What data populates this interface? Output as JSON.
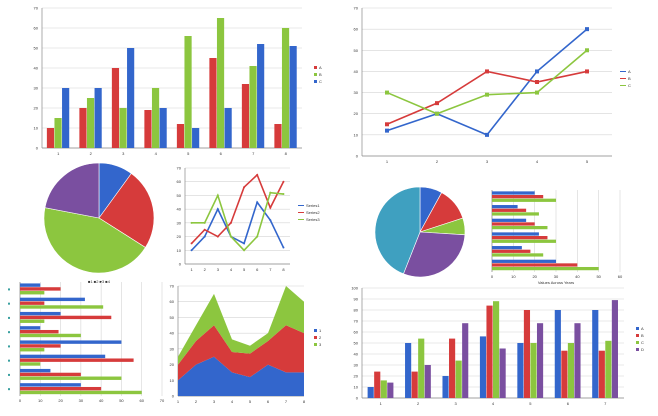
{
  "colors": {
    "blue": "#3366cc",
    "red": "#d63b3b",
    "green": "#8cc63f",
    "purple": "#7a4fa0",
    "teal": "#3fa0c0",
    "orange": "#e08030"
  },
  "chart_data": [
    {
      "id": "c1",
      "type": "bar",
      "title": "",
      "categories": [
        "1",
        "2",
        "3",
        "4",
        "5",
        "6",
        "7",
        "8"
      ],
      "ylim": [
        0,
        70
      ],
      "yticks": [
        0,
        10,
        20,
        30,
        40,
        50,
        60,
        70
      ],
      "series": [
        {
          "name": "A",
          "color": "red",
          "values": [
            10,
            20,
            40,
            19,
            12,
            45,
            32,
            12
          ]
        },
        {
          "name": "B",
          "color": "green",
          "values": [
            15,
            25,
            20,
            30,
            56,
            65,
            41,
            60
          ]
        },
        {
          "name": "C",
          "color": "blue",
          "values": [
            30,
            30,
            50,
            20,
            10,
            20,
            52,
            51
          ]
        }
      ],
      "legend": "right"
    },
    {
      "id": "c2",
      "type": "line",
      "title": "",
      "categories": [
        "1",
        "2",
        "3",
        "4",
        "5"
      ],
      "ylim": [
        0,
        70
      ],
      "yticks": [
        0,
        10,
        20,
        30,
        40,
        50,
        60,
        70
      ],
      "series": [
        {
          "name": "A",
          "color": "blue",
          "values": [
            12,
            20,
            10,
            40,
            60
          ]
        },
        {
          "name": "B",
          "color": "red",
          "values": [
            15,
            25,
            40,
            35,
            40
          ]
        },
        {
          "name": "C",
          "color": "green",
          "values": [
            30,
            20,
            29,
            30,
            50
          ]
        }
      ],
      "legend": "right"
    },
    {
      "id": "c3",
      "type": "pie",
      "caption": "■1 ■2 ■3 ■4",
      "slices": [
        {
          "label": "1",
          "value": 10,
          "color": "blue"
        },
        {
          "label": "2",
          "value": 24,
          "color": "red"
        },
        {
          "label": "3",
          "value": 44,
          "color": "green"
        },
        {
          "label": "4",
          "value": 22,
          "color": "purple"
        }
      ]
    },
    {
      "id": "c4",
      "type": "line",
      "title": "",
      "categories": [
        "1",
        "2",
        "3",
        "4",
        "5",
        "6",
        "7",
        "8"
      ],
      "ylim": [
        0,
        70
      ],
      "yticks": [
        0,
        10,
        20,
        30,
        40,
        50,
        60,
        70
      ],
      "series": [
        {
          "name": "Series1",
          "color": "blue",
          "values": [
            10,
            20,
            40,
            20,
            15,
            45,
            32,
            12
          ]
        },
        {
          "name": "Series2",
          "color": "red",
          "values": [
            15,
            25,
            20,
            30,
            56,
            65,
            41,
            60
          ]
        },
        {
          "name": "Series3",
          "color": "green",
          "values": [
            30,
            30,
            50,
            20,
            10,
            20,
            52,
            51
          ]
        }
      ],
      "legend": "right"
    },
    {
      "id": "c5",
      "type": "pie",
      "caption": "",
      "slices": [
        {
          "label": "1",
          "value": 8,
          "color": "blue"
        },
        {
          "label": "2",
          "value": 12,
          "color": "red"
        },
        {
          "label": "3",
          "value": 6,
          "color": "green"
        },
        {
          "label": "4",
          "value": 30,
          "color": "purple"
        },
        {
          "label": "5",
          "value": 44,
          "color": "teal"
        }
      ]
    },
    {
      "id": "c6",
      "type": "bar",
      "orientation": "horizontal",
      "title": "",
      "xlim": [
        0,
        60
      ],
      "xticks": [
        0,
        10,
        20,
        30,
        40,
        50,
        60
      ],
      "xlabel": "Values Across Years",
      "groups": [
        [
          20,
          24,
          30
        ],
        [
          12,
          16,
          22
        ],
        [
          16,
          20,
          26
        ],
        [
          22,
          26,
          30
        ],
        [
          14,
          18,
          24
        ],
        [
          30,
          40,
          50
        ]
      ],
      "group_colors": [
        "blue",
        "red",
        "green"
      ],
      "legend": "right"
    },
    {
      "id": "c7",
      "type": "bar",
      "orientation": "horizontal",
      "title": "",
      "xlim": [
        0,
        70
      ],
      "xticks": [
        0,
        10,
        20,
        30,
        40,
        50,
        60,
        70
      ],
      "groups": [
        [
          10,
          20,
          12
        ],
        [
          32,
          12,
          41
        ],
        [
          20,
          45,
          12
        ],
        [
          10,
          19,
          30
        ],
        [
          50,
          20,
          12
        ],
        [
          42,
          56,
          10
        ],
        [
          15,
          30,
          50
        ],
        [
          30,
          40,
          60
        ]
      ],
      "group_colors": [
        "blue",
        "red",
        "green"
      ],
      "legend": "left"
    },
    {
      "id": "c8",
      "type": "area",
      "title": "",
      "categories": [
        "1",
        "2",
        "3",
        "4",
        "5",
        "6",
        "7",
        "8"
      ],
      "ylim": [
        0,
        70
      ],
      "yticks": [
        0,
        10,
        20,
        30,
        40,
        50,
        60,
        70
      ],
      "series": [
        {
          "name": "1",
          "color": "blue",
          "values": [
            10,
            20,
            25,
            15,
            12,
            20,
            15,
            15
          ]
        },
        {
          "name": "2",
          "color": "red",
          "values": [
            10,
            15,
            20,
            13,
            15,
            15,
            30,
            25
          ]
        },
        {
          "name": "3",
          "color": "green",
          "values": [
            5,
            10,
            20,
            8,
            5,
            5,
            25,
            20
          ]
        }
      ],
      "legend": "right"
    },
    {
      "id": "c9",
      "type": "bar",
      "title": "",
      "categories": [
        "1",
        "2",
        "3",
        "4",
        "5",
        "6",
        "7"
      ],
      "ylim": [
        0,
        100
      ],
      "yticks": [
        0,
        10,
        20,
        30,
        40,
        50,
        60,
        70,
        80,
        90,
        100
      ],
      "series": [
        {
          "name": "A",
          "color": "blue",
          "values": [
            10,
            50,
            20,
            56,
            50,
            80,
            80
          ]
        },
        {
          "name": "B",
          "color": "red",
          "values": [
            24,
            24,
            54,
            84,
            80,
            43,
            43
          ]
        },
        {
          "name": "C",
          "color": "green",
          "values": [
            16,
            54,
            34,
            88,
            50,
            50,
            52
          ]
        },
        {
          "name": "D",
          "color": "purple",
          "values": [
            14,
            30,
            68,
            45,
            68,
            68,
            89
          ]
        }
      ],
      "legend": "right"
    }
  ]
}
